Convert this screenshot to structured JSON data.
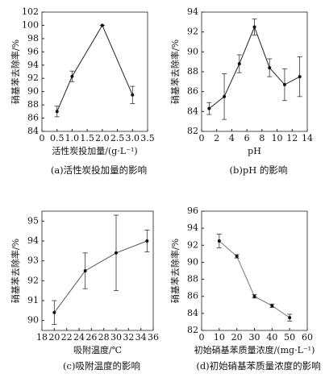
{
  "chart_data": [
    {
      "type": "line",
      "caption": "(a)活性炭投加量的影响",
      "xlabel": "活性炭投加量/(g·L⁻¹)",
      "ylabel": "硝基苯去除率/%",
      "x": [
        0.5,
        1.0,
        2.0,
        3.0
      ],
      "xlim": [
        0,
        3.5
      ],
      "xticks": [
        0,
        0.5,
        {
          "value": 1,
          "label": "1.0"
        },
        1.5,
        {
          "value": 2,
          "label": "2.0"
        },
        2.5,
        {
          "value": 3,
          "label": "3.0"
        },
        3.5
      ],
      "ylim": [
        84,
        102
      ],
      "yticks": [
        84,
        86,
        88,
        90,
        92,
        94,
        96,
        98,
        100,
        102
      ],
      "series": [
        {
          "color": "#222",
          "values": [
            87,
            92.3,
            100,
            89.5
          ],
          "errors": [
            0.8,
            0.8,
            0,
            1.3
          ]
        }
      ]
    },
    {
      "type": "line",
      "caption": "(b)pH 的影响",
      "xlabel": "pH",
      "ylabel": "硝基苯去除率/%",
      "x": [
        1,
        3,
        5,
        7,
        9,
        11,
        13
      ],
      "xlim": [
        0,
        14
      ],
      "xticks": [
        0,
        2,
        4,
        6,
        8,
        10,
        12,
        14
      ],
      "ylim": [
        82,
        94
      ],
      "yticks": [
        82,
        84,
        86,
        88,
        90,
        92,
        94
      ],
      "series": [
        {
          "color": "#222",
          "values": [
            84.3,
            85.5,
            88.8,
            92.5,
            88.4,
            86.7,
            87.5
          ],
          "errors": [
            0.6,
            2.3,
            0.9,
            0.8,
            0.9,
            1.6,
            2.0
          ]
        }
      ]
    },
    {
      "type": "line",
      "caption": "(c)吸附温度的影响",
      "xlabel": "吸附温度/℃",
      "ylabel": "硝基苯去除率/%",
      "x": [
        20,
        25,
        30,
        35
      ],
      "xlim": [
        18,
        36
      ],
      "xticks": [
        18,
        20,
        22,
        24,
        26,
        28,
        30,
        32,
        34,
        36
      ],
      "ylim": [
        89.5,
        95.5
      ],
      "yticks": [
        90,
        91,
        92,
        93,
        94,
        95
      ],
      "series": [
        {
          "color": "#555",
          "values": [
            90.4,
            92.5,
            93.4,
            94.0
          ],
          "errors": [
            0.6,
            0.9,
            1.9,
            0.55
          ]
        }
      ]
    },
    {
      "type": "line",
      "caption": "(d)初始硝基苯质量浓度的影响",
      "xlabel": "初始硝基苯质量浓度/(mg·L⁻¹)",
      "ylabel": "硝基苯去除率/%",
      "x": [
        10,
        20,
        30,
        40,
        50
      ],
      "xlim": [
        0,
        60
      ],
      "xticks": [
        0,
        10,
        20,
        30,
        40,
        50,
        60
      ],
      "ylim": [
        82,
        96
      ],
      "yticks": [
        82,
        84,
        86,
        88,
        90,
        92,
        94,
        96
      ],
      "series": [
        {
          "color": "#777",
          "values": [
            92.5,
            90.7,
            86.0,
            84.9,
            83.5
          ],
          "errors": [
            0.8,
            0.2,
            0.2,
            0.2,
            0.4
          ]
        }
      ]
    }
  ]
}
